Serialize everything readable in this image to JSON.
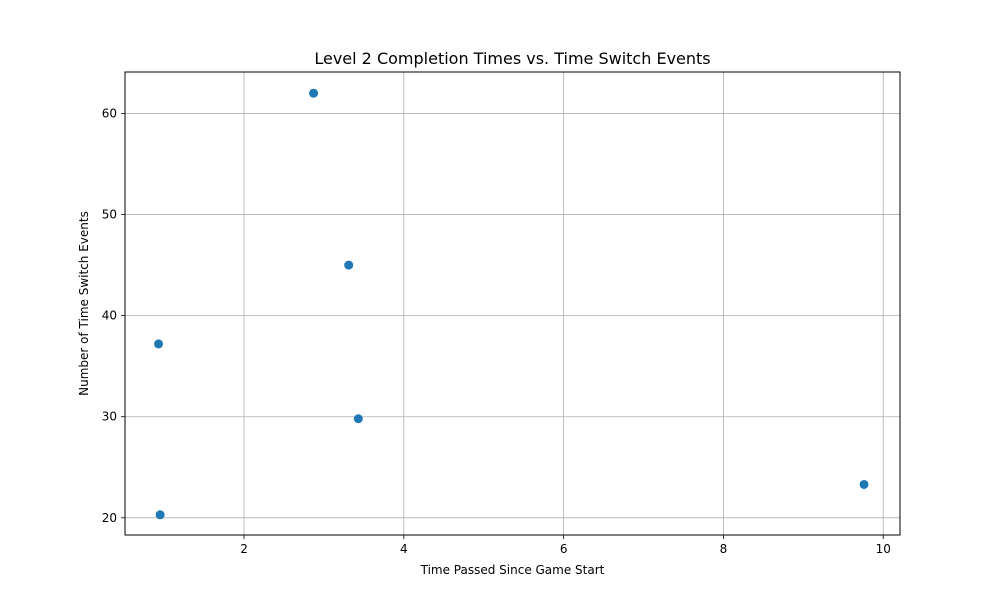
{
  "chart_data": {
    "type": "scatter",
    "title": "Level 2 Completion Times vs. Time Switch Events",
    "xlabel": "Time Passed Since Game Start",
    "ylabel": "Number of Time Switch Events",
    "xlim": [
      0.51,
      10.21
    ],
    "ylim": [
      18.3,
      64.1
    ],
    "xticks": [
      2,
      4,
      6,
      8,
      10
    ],
    "yticks": [
      20,
      30,
      40,
      50,
      60
    ],
    "grid": true,
    "marker_color": "#1f77b4",
    "series": [
      {
        "x": [
          2.87,
          3.31,
          0.93,
          3.43,
          9.76,
          0.95
        ],
        "y": [
          62.0,
          45.0,
          37.2,
          29.8,
          23.3,
          20.3
        ]
      }
    ]
  }
}
